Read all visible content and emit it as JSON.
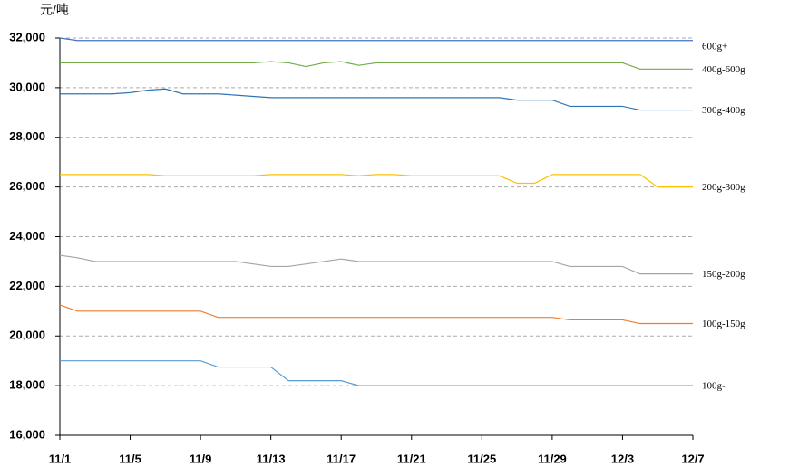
{
  "chart_data": {
    "type": "line",
    "y_label": "元/吨",
    "categories": [
      "11/1",
      null,
      null,
      null,
      "11/5",
      null,
      null,
      null,
      "11/9",
      null,
      null,
      null,
      "11/13",
      null,
      null,
      null,
      "11/17",
      null,
      null,
      null,
      "11/21",
      null,
      null,
      null,
      "11/25",
      null,
      null,
      null,
      "11/29",
      null,
      null,
      null,
      "12/3",
      null,
      null,
      null,
      "12/7"
    ],
    "ylim": [
      16000,
      32000
    ],
    "yticks": [
      {
        "value": 16000,
        "label": "16,000"
      },
      {
        "value": 18000,
        "label": "18,000"
      },
      {
        "value": 20000,
        "label": "20,000"
      },
      {
        "value": 22000,
        "label": "22,000"
      },
      {
        "value": 24000,
        "label": "24,000"
      },
      {
        "value": 26000,
        "label": "26,000"
      },
      {
        "value": 28000,
        "label": "28,000"
      },
      {
        "value": 30000,
        "label": "30,000"
      },
      {
        "value": 32000,
        "label": "32,000"
      }
    ],
    "grid": true,
    "series": [
      {
        "name": "600g+",
        "color": "#4472c4",
        "values": [
          32000,
          31900,
          31900,
          31900,
          31900,
          31900,
          31900,
          31900,
          31900,
          31900,
          31900,
          31900,
          31900,
          31900,
          31900,
          31900,
          31900,
          31900,
          31900,
          31900,
          31900,
          31900,
          31900,
          31900,
          31900,
          31900,
          31900,
          31900,
          31900,
          31900,
          31900,
          31900,
          31900,
          31900,
          31900,
          31900,
          31900
        ]
      },
      {
        "name": "400g-600g",
        "color": "#70ad47",
        "values": [
          31000,
          31000,
          31000,
          31000,
          31000,
          31000,
          31000,
          31000,
          31000,
          31000,
          31000,
          31000,
          31050,
          31000,
          30850,
          31000,
          31050,
          30900,
          31000,
          31000,
          31000,
          31000,
          31000,
          31000,
          31000,
          31000,
          31000,
          31000,
          31000,
          31000,
          31000,
          31000,
          31000,
          30750,
          30750,
          30750,
          30750
        ]
      },
      {
        "name": "300g-400g",
        "color": "#2e75b6",
        "values": [
          29750,
          29750,
          29750,
          29750,
          29800,
          29900,
          29950,
          29750,
          29750,
          29750,
          29700,
          29650,
          29600,
          29600,
          29600,
          29600,
          29600,
          29600,
          29600,
          29600,
          29600,
          29600,
          29600,
          29600,
          29600,
          29600,
          29500,
          29500,
          29500,
          29250,
          29250,
          29250,
          29250,
          29100,
          29100,
          29100,
          29100
        ]
      },
      {
        "name": "200g-300g",
        "color": "#ffc000",
        "values": [
          26500,
          26500,
          26500,
          26500,
          26500,
          26500,
          26450,
          26450,
          26450,
          26450,
          26450,
          26450,
          26500,
          26500,
          26500,
          26500,
          26500,
          26450,
          26500,
          26500,
          26450,
          26450,
          26450,
          26450,
          26450,
          26450,
          26150,
          26150,
          26500,
          26500,
          26500,
          26500,
          26500,
          26500,
          26000,
          26000,
          26000
        ]
      },
      {
        "name": "150g-200g",
        "color": "#a5a5a5",
        "values": [
          23250,
          23150,
          23000,
          23000,
          23000,
          23000,
          23000,
          23000,
          23000,
          23000,
          23000,
          22900,
          22800,
          22800,
          22900,
          23000,
          23100,
          23000,
          23000,
          23000,
          23000,
          23000,
          23000,
          23000,
          23000,
          23000,
          23000,
          23000,
          23000,
          22800,
          22800,
          22800,
          22800,
          22500,
          22500,
          22500,
          22500
        ]
      },
      {
        "name": "100g-150g",
        "color": "#ed7d31",
        "values": [
          21250,
          21000,
          21000,
          21000,
          21000,
          21000,
          21000,
          21000,
          21000,
          20750,
          20750,
          20750,
          20750,
          20750,
          20750,
          20750,
          20750,
          20750,
          20750,
          20750,
          20750,
          20750,
          20750,
          20750,
          20750,
          20750,
          20750,
          20750,
          20750,
          20650,
          20650,
          20650,
          20650,
          20500,
          20500,
          20500,
          20500
        ]
      },
      {
        "name": "100g-",
        "color": "#5b9bd5",
        "values": [
          19000,
          19000,
          19000,
          19000,
          19000,
          19000,
          19000,
          19000,
          19000,
          18750,
          18750,
          18750,
          18750,
          18200,
          18200,
          18200,
          18200,
          18000,
          18000,
          18000,
          18000,
          18000,
          18000,
          18000,
          18000,
          18000,
          18000,
          18000,
          18000,
          18000,
          18000,
          18000,
          18000,
          18000,
          18000,
          18000,
          18000
        ]
      }
    ]
  }
}
